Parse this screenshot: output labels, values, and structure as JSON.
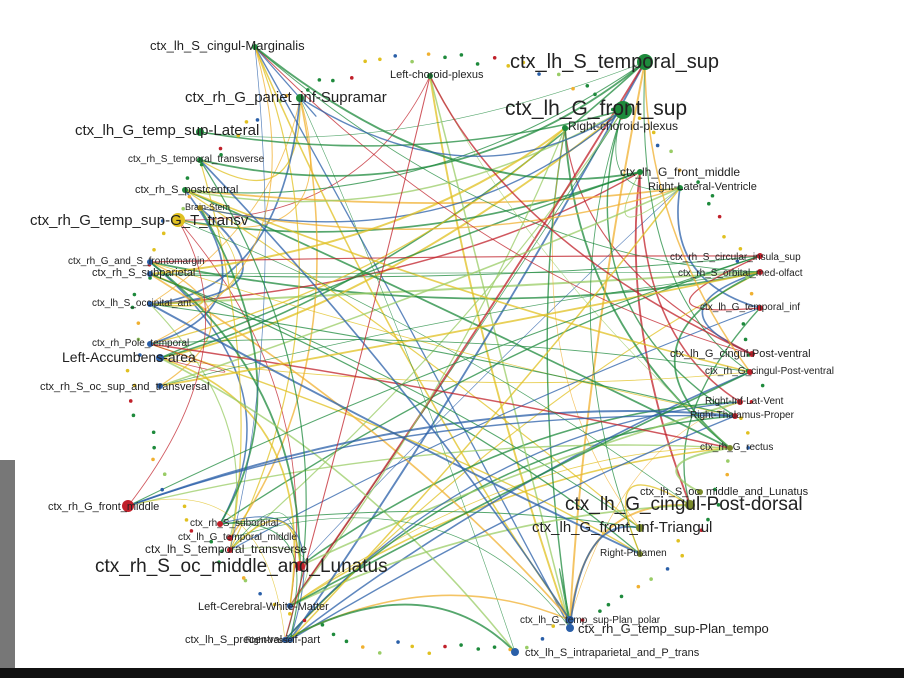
{
  "nodes": [
    {
      "label": "ctx_lh_S_cingul-Marginalis"
    },
    {
      "label": "ctx_lh_S_temporal_sup"
    },
    {
      "label": "Left-choroid-plexus"
    },
    {
      "label": "ctx_rh_G_pariet_inf-Supramar"
    },
    {
      "label": "ctx_lh_G_front_sup"
    },
    {
      "label": "ctx_lh_G_temp_sup-Lateral"
    },
    {
      "label": "Right-choroid-plexus"
    },
    {
      "label": "ctx_rh_S_temporal_transverse"
    },
    {
      "label": "ctx_rh_S_postcentral"
    },
    {
      "label": "ctx_lh_G_front_middle"
    },
    {
      "label": "Right-Lateral-Ventricle"
    },
    {
      "label": "ctx_rh_G_temp_sup-G_T_transv"
    },
    {
      "label": "Brain-Stem"
    },
    {
      "label": "ctx_rh_G_and_S_frontomargin"
    },
    {
      "label": "ctx_rh_S_subparietal"
    },
    {
      "label": "ctx_rh_S_circular_insula_sup"
    },
    {
      "label": "ctx_rh_S_orbital_med-olfact"
    },
    {
      "label": "ctx_lh_S_occipital_ant"
    },
    {
      "label": "ctx_rh_Pole_temporal"
    },
    {
      "label": "ctx_lh_G_temporal_inf"
    },
    {
      "label": "Left-Accumbens-area"
    },
    {
      "label": "ctx_lh_G_cingul-Post-ventral"
    },
    {
      "label": "ctx_rh_S_oc_sup_and_transversal"
    },
    {
      "label": "ctx_rh_G_cingul-Post-ventral"
    },
    {
      "label": "Right-Inf-Lat-Vent"
    },
    {
      "label": "Right-Thalamus-Proper"
    },
    {
      "label": "ctx_rh_G_rectus"
    },
    {
      "label": "ctx_lh_S_oc_middle_and_Lunatus"
    },
    {
      "label": "ctx_lh_G_cingul-Post-dorsal"
    },
    {
      "label": "ctx_rh_G_front_middle"
    },
    {
      "label": "ctx_lh_G_front_inf-Triangul"
    },
    {
      "label": "ctx_rh_S_suborbital"
    },
    {
      "label": "ctx_lh_G_temporal_middle"
    },
    {
      "label": "ctx_lh_S_temporal_transverse"
    },
    {
      "label": "ctx_rh_S_oc_middle_and_Lunatus"
    },
    {
      "label": "Right-Putamen"
    },
    {
      "label": "Left-Cerebral-White-Matter"
    },
    {
      "label": "ctx_lh_G_temp_sup-Plan_polar"
    },
    {
      "label": "ctx_rh_G_temp_sup-Plan_tempo"
    },
    {
      "label": "ctx_lh_S_precentral-inf-part"
    },
    {
      "label": "Right-vessel"
    },
    {
      "label": "ctx_lh_S_intraparietal_and_P_trans"
    }
  ]
}
